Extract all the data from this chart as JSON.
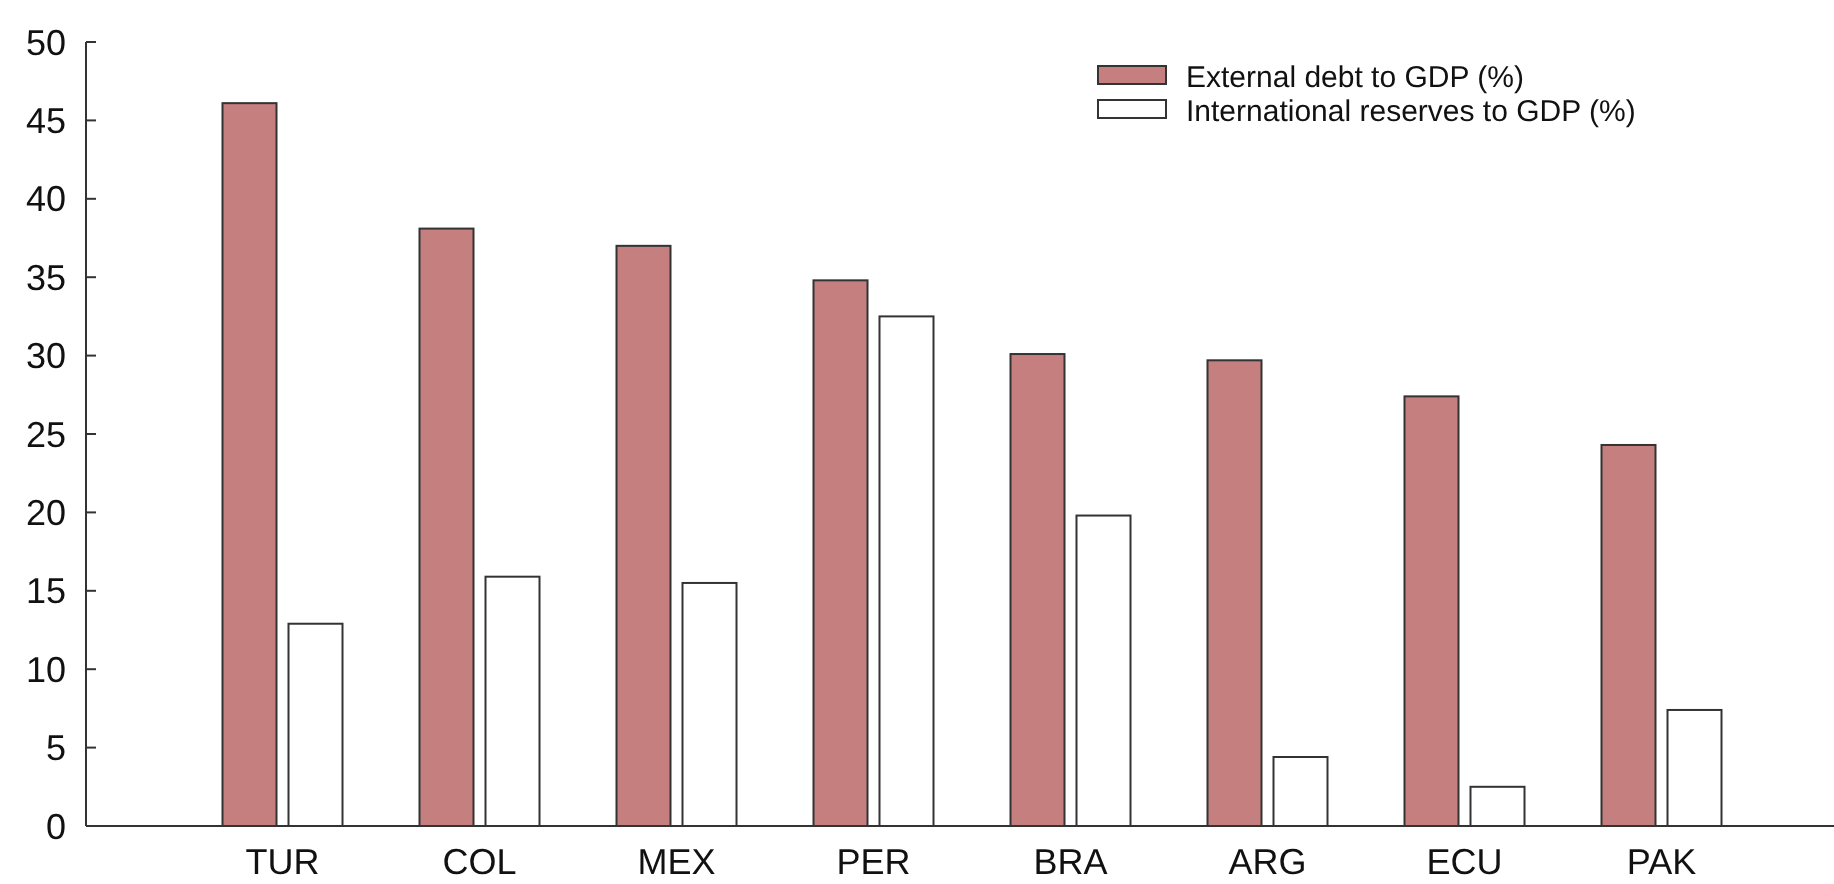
{
  "chart_data": {
    "type": "bar",
    "categories": [
      "TUR",
      "COL",
      "MEX",
      "PER",
      "BRA",
      "ARG",
      "ECU",
      "PAK"
    ],
    "series": [
      {
        "name": "External debt to GDP (%)",
        "color": "#c47f7e",
        "values": [
          46.1,
          38.1,
          37.0,
          34.8,
          30.1,
          29.7,
          27.4,
          24.3
        ]
      },
      {
        "name": "International reserves to GDP (%)",
        "color": "#ffffff",
        "values": [
          12.9,
          15.9,
          15.5,
          32.5,
          19.8,
          4.4,
          2.5,
          7.4
        ]
      }
    ],
    "ylim": [
      0,
      50
    ],
    "yticks": [
      0,
      5,
      10,
      15,
      20,
      25,
      30,
      35,
      40,
      45,
      50
    ],
    "grid": false,
    "legend": "top right"
  }
}
